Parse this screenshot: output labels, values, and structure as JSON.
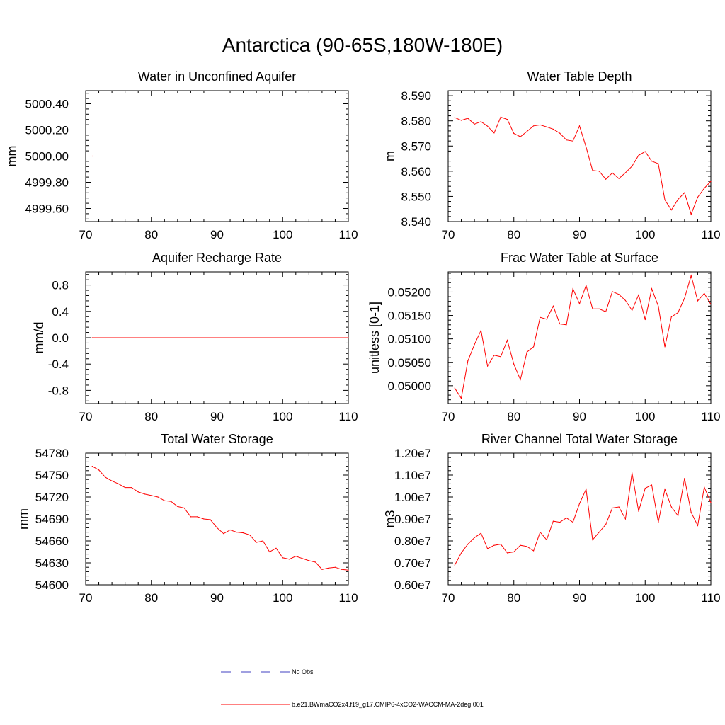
{
  "figure": {
    "title": "Antarctica (90-65S,180W-180E)",
    "series_color": "#ff0000",
    "obs_color": "#4040c0"
  },
  "legend": {
    "items": [
      {
        "label": "No Obs",
        "style": "dashed",
        "color": "#4040c0"
      },
      {
        "label": "b.e21.BWmaCO2x4.f19_g17.CMIP6-4xCO2-WACCM-MA-2deg.001",
        "style": "solid",
        "color": "#ff0000"
      }
    ]
  },
  "chart_data": [
    {
      "type": "line",
      "title": "Water in Unconfined Aquifer",
      "ylabel": "mm",
      "xlim": [
        70,
        110
      ],
      "ylim": [
        4999.5,
        5000.5
      ],
      "xticks": [
        70,
        80,
        90,
        100,
        110
      ],
      "yticks": [
        4999.6,
        4999.8,
        5000.0,
        5000.2,
        5000.4
      ],
      "ytick_labels": [
        "4999.60",
        "4999.80",
        "5000.00",
        "5000.20",
        "5000.40"
      ],
      "x": [
        71,
        110
      ],
      "series": [
        {
          "name": "b.e21.BWmaCO2x4.f19_g17.CMIP6-4xCO2-WACCM-MA-2deg.001",
          "values": [
            5000.0,
            5000.0
          ]
        }
      ]
    },
    {
      "type": "line",
      "title": "Water Table Depth",
      "ylabel": "m",
      "xlim": [
        70,
        110
      ],
      "ylim": [
        8.54,
        8.592
      ],
      "xticks": [
        70,
        80,
        90,
        100,
        110
      ],
      "yticks": [
        8.54,
        8.55,
        8.56,
        8.57,
        8.58,
        8.59
      ],
      "ytick_labels": [
        "8.540",
        "8.550",
        "8.560",
        "8.570",
        "8.580",
        "8.590"
      ],
      "x": [
        71,
        72,
        73,
        74,
        75,
        76,
        77,
        78,
        79,
        80,
        81,
        82,
        83,
        84,
        85,
        86,
        87,
        88,
        89,
        90,
        91,
        92,
        93,
        94,
        95,
        96,
        97,
        98,
        99,
        100,
        101,
        102,
        103,
        104,
        105,
        106,
        107,
        108,
        109,
        110
      ],
      "series": [
        {
          "name": "b.e21.BWmaCO2x4.f19_g17.CMIP6-4xCO2-WACCM-MA-2deg.001",
          "values": [
            8.5813,
            8.5802,
            8.581,
            8.5787,
            8.5797,
            8.5779,
            8.5752,
            8.5815,
            8.5806,
            8.575,
            8.5737,
            8.5758,
            8.578,
            8.5784,
            8.5776,
            8.5767,
            8.5751,
            8.5724,
            8.572,
            8.578,
            8.5696,
            8.5603,
            8.56,
            8.5568,
            8.5593,
            8.5571,
            8.5594,
            8.562,
            8.5663,
            8.5678,
            8.564,
            8.563,
            8.5486,
            8.5446,
            8.5488,
            8.5515,
            8.5429,
            8.5497,
            8.5532,
            8.556
          ]
        }
      ]
    },
    {
      "type": "line",
      "title": "Aquifer Recharge Rate",
      "ylabel": "mm/d",
      "xlim": [
        70,
        110
      ],
      "ylim": [
        -1.0,
        1.0
      ],
      "xticks": [
        70,
        80,
        90,
        100,
        110
      ],
      "yticks": [
        -0.8,
        -0.4,
        0.0,
        0.4,
        0.8
      ],
      "ytick_labels": [
        "-0.8",
        "-0.4",
        "0.0",
        "0.4",
        "0.8"
      ],
      "x": [
        71,
        110
      ],
      "series": [
        {
          "name": "b.e21.BWmaCO2x4.f19_g17.CMIP6-4xCO2-WACCM-MA-2deg.001",
          "values": [
            0.0,
            0.0
          ]
        }
      ]
    },
    {
      "type": "line",
      "title": "Frac Water Table at Surface",
      "ylabel": "unitless [0-1]",
      "xlim": [
        70,
        110
      ],
      "ylim": [
        0.04962,
        0.05243
      ],
      "xticks": [
        70,
        80,
        90,
        100,
        110
      ],
      "yticks": [
        0.05,
        0.0505,
        0.051,
        0.0515,
        0.052
      ],
      "ytick_labels": [
        "0.05000",
        "0.05050",
        "0.05100",
        "0.05150",
        "0.05200"
      ],
      "x": [
        71,
        72,
        73,
        74,
        75,
        76,
        77,
        78,
        79,
        80,
        81,
        82,
        83,
        84,
        85,
        86,
        87,
        88,
        89,
        90,
        91,
        92,
        93,
        94,
        95,
        96,
        97,
        98,
        99,
        100,
        101,
        102,
        103,
        104,
        105,
        106,
        107,
        108,
        109,
        110
      ],
      "series": [
        {
          "name": "b.e21.BWmaCO2x4.f19_g17.CMIP6-4xCO2-WACCM-MA-2deg.001",
          "values": [
            0.04995,
            0.04973,
            0.05053,
            0.05088,
            0.05118,
            0.05042,
            0.05065,
            0.05062,
            0.05097,
            0.05046,
            0.05013,
            0.05072,
            0.05083,
            0.05146,
            0.05142,
            0.0517,
            0.05132,
            0.0513,
            0.05207,
            0.05175,
            0.05214,
            0.05164,
            0.05164,
            0.05158,
            0.05201,
            0.05195,
            0.05182,
            0.05161,
            0.05194,
            0.05141,
            0.05207,
            0.0517,
            0.05083,
            0.05147,
            0.05156,
            0.05187,
            0.05235,
            0.05181,
            0.05197,
            0.05174
          ]
        }
      ]
    },
    {
      "type": "line",
      "title": "Total Water Storage",
      "ylabel": "mm",
      "xlim": [
        70,
        110
      ],
      "ylim": [
        54600,
        54780
      ],
      "xticks": [
        70,
        80,
        90,
        100,
        110
      ],
      "yticks": [
        54600,
        54630,
        54660,
        54690,
        54720,
        54750,
        54780
      ],
      "ytick_labels": [
        "54600",
        "54630",
        "54660",
        "54690",
        "54720",
        "54750",
        "54780"
      ],
      "x": [
        71,
        72,
        73,
        74,
        75,
        76,
        77,
        78,
        79,
        80,
        81,
        82,
        83,
        84,
        85,
        86,
        87,
        88,
        89,
        90,
        91,
        92,
        93,
        94,
        95,
        96,
        97,
        98,
        99,
        100,
        101,
        102,
        103,
        104,
        105,
        106,
        107,
        108,
        109,
        110
      ],
      "series": [
        {
          "name": "b.e21.BWmaCO2x4.f19_g17.CMIP6-4xCO2-WACCM-MA-2deg.001",
          "values": [
            54762,
            54757,
            54747,
            54742,
            54738,
            54733,
            54733,
            54727,
            54724,
            54722,
            54720,
            54715,
            54714,
            54707,
            54705,
            54693,
            54693,
            54690,
            54689,
            54678,
            54670,
            54675,
            54672,
            54671,
            54668,
            54658,
            54660,
            54645,
            54650,
            54637,
            54635,
            54639,
            54636,
            54633,
            54631,
            54621,
            54623,
            54624,
            54621,
            54620
          ]
        }
      ]
    },
    {
      "type": "line",
      "title": "River Channel Total Water Storage",
      "ylabel": "m3",
      "xlim": [
        70,
        110
      ],
      "ylim": [
        6000000,
        12000000
      ],
      "xticks": [
        70,
        80,
        90,
        100,
        110
      ],
      "yticks": [
        6000000,
        7000000,
        8000000,
        9000000,
        10000000,
        11000000,
        12000000
      ],
      "ytick_labels": [
        "0.60e7",
        "0.70e7",
        "0.80e7",
        "0.90e7",
        "1.00e7",
        "1.10e7",
        "1.20e7"
      ],
      "x": [
        71,
        72,
        73,
        74,
        75,
        76,
        77,
        78,
        79,
        80,
        81,
        82,
        83,
        84,
        85,
        86,
        87,
        88,
        89,
        90,
        91,
        92,
        93,
        94,
        95,
        96,
        97,
        98,
        99,
        100,
        101,
        102,
        103,
        104,
        105,
        106,
        107,
        108,
        109,
        110
      ],
      "series": [
        {
          "name": "b.e21.BWmaCO2x4.f19_g17.CMIP6-4xCO2-WACCM-MA-2deg.001",
          "values": [
            6900000,
            7450000,
            7850000,
            8150000,
            8350000,
            7650000,
            7800000,
            7850000,
            7450000,
            7500000,
            7800000,
            7750000,
            7550000,
            8400000,
            8050000,
            8900000,
            8850000,
            9050000,
            8850000,
            9700000,
            10350000,
            8050000,
            8400000,
            8750000,
            9500000,
            9550000,
            9000000,
            11100000,
            9350000,
            10400000,
            10550000,
            8850000,
            10350000,
            9550000,
            9150000,
            10850000,
            9300000,
            8700000,
            10450000,
            9750000
          ]
        }
      ]
    }
  ]
}
